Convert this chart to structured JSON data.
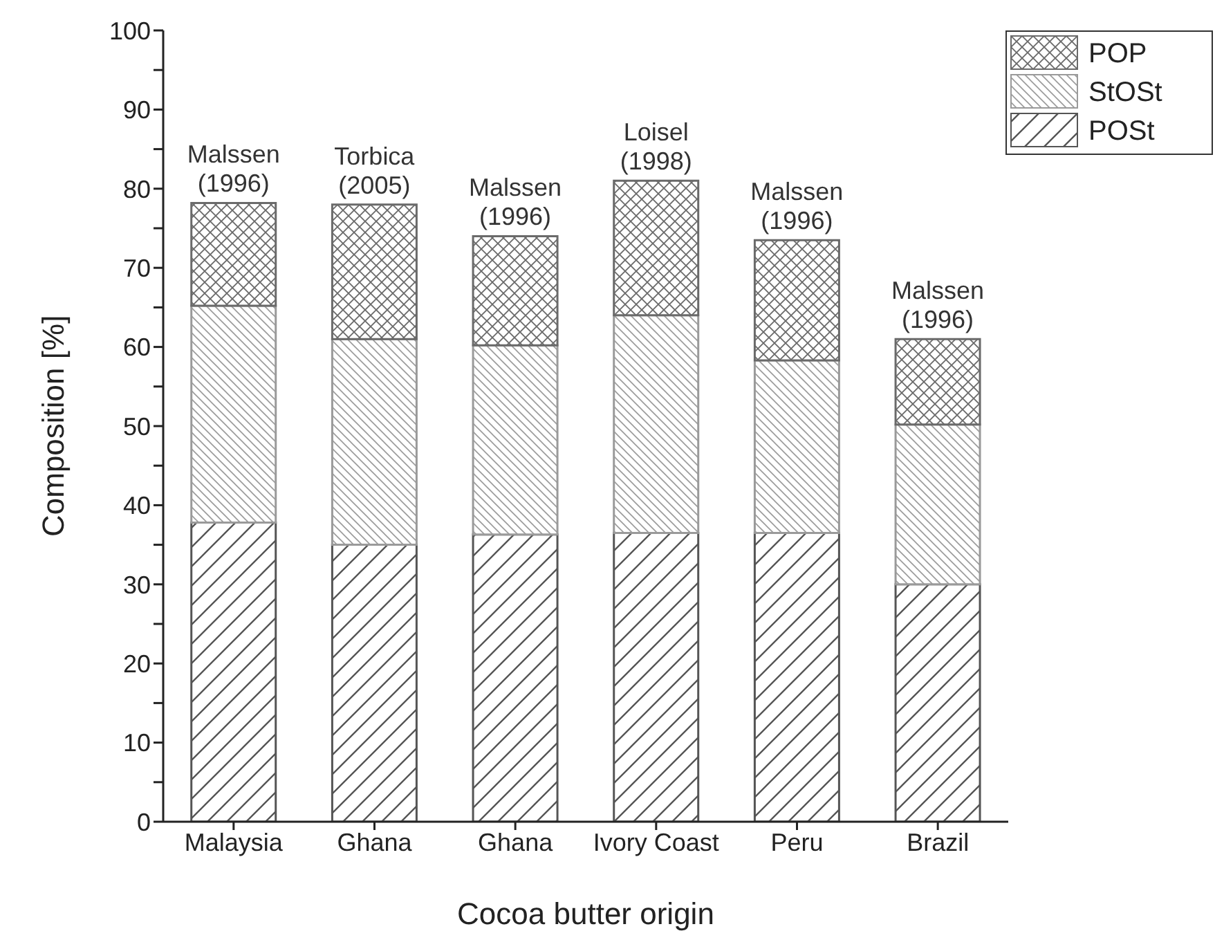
{
  "chart_data": {
    "type": "bar",
    "stacked": true,
    "xlabel": "Cocoa butter origin",
    "ylabel": "Composition [%]",
    "categories": [
      "Malaysia",
      "Ghana",
      "Ghana",
      "Ivory Coast",
      "Peru",
      "Brazil"
    ],
    "series": [
      {
        "name": "POSt",
        "color": "#555555",
        "values": [
          37.8,
          35,
          36.3,
          36.5,
          36.5,
          30
        ]
      },
      {
        "name": "StOSt",
        "color": "#9a9a9a",
        "values": [
          27.4,
          26,
          23.9,
          27.5,
          21.8,
          20.2
        ]
      },
      {
        "name": "POP",
        "color": "#6a6a6a",
        "values": [
          13,
          17,
          13.8,
          17,
          15.2,
          10.8
        ]
      }
    ],
    "ylim": [
      0,
      100
    ],
    "yticks": [
      0,
      {
        "value": 5,
        "label": null
      },
      10,
      {
        "value": 15,
        "label": null
      },
      20,
      {
        "value": 25,
        "label": null
      },
      30,
      {
        "value": 35,
        "label": null
      },
      40,
      {
        "value": 45,
        "label": null
      },
      50,
      {
        "value": 55,
        "label": null
      },
      60,
      {
        "value": 65,
        "label": null
      },
      70,
      {
        "value": 75,
        "label": null
      },
      80,
      {
        "value": 85,
        "label": null
      },
      90,
      {
        "value": 95,
        "label": null
      },
      100
    ],
    "annotations": [
      "Malssen (1996)",
      "Torbica (2005)",
      "Malssen (1996)",
      "Loisel (1998)",
      "Malssen (1996)",
      "Malssen (1996)"
    ],
    "legend": "top right",
    "grid": false
  }
}
